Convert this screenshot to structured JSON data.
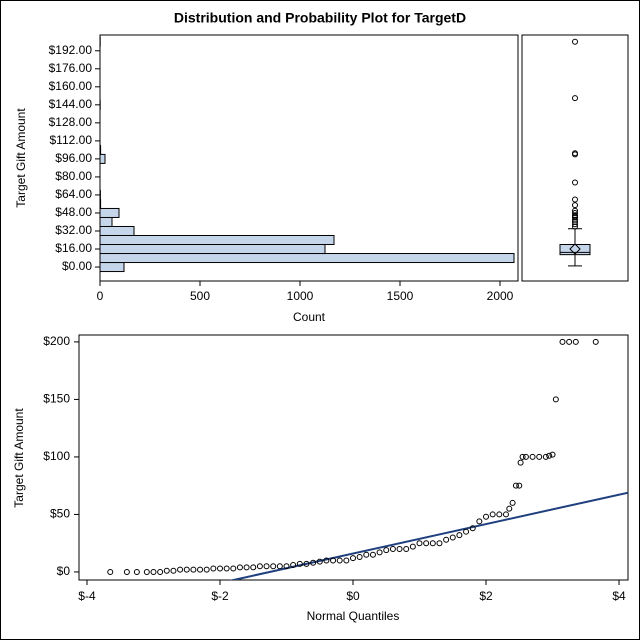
{
  "title": "Distribution and Probability Plot for TargetD",
  "chart_data": [
    {
      "type": "histogram",
      "orientation": "horizontal",
      "xlabel": "Count",
      "ylabel": "Target Gift Amount",
      "bins": [
        -4,
        4,
        12,
        20,
        28,
        36,
        44,
        52,
        60,
        68,
        76,
        84,
        92,
        100,
        108,
        116,
        124,
        132,
        140,
        148,
        156,
        164,
        172,
        180,
        188,
        196,
        204
      ],
      "values": [
        120,
        2070,
        1125,
        1170,
        170,
        60,
        95,
        3,
        2,
        0,
        0,
        0,
        25,
        3,
        0,
        0,
        0,
        0,
        1,
        0,
        0,
        0,
        0,
        0,
        0,
        1
      ],
      "color": "#c5d6eb",
      "xlim": [
        0,
        2090
      ],
      "xticks": [
        0,
        500,
        1000,
        1500,
        2000
      ],
      "ylim": [
        -12.4,
        206
      ],
      "yticks": [
        {
          "value": 0,
          "label": "$0.00"
        },
        {
          "value": 16,
          "label": "$16.00"
        },
        {
          "value": 32,
          "label": "$32.00"
        },
        {
          "value": 48,
          "label": "$48.00"
        },
        {
          "value": 64,
          "label": "$64.00"
        },
        {
          "value": 80,
          "label": "$80.00"
        },
        {
          "value": 96,
          "label": "$96.00"
        },
        {
          "value": 112,
          "label": "$112.00"
        },
        {
          "value": 128,
          "label": "$128.00"
        },
        {
          "value": 144,
          "label": "$144.00"
        },
        {
          "value": 160,
          "label": "$160.00"
        },
        {
          "value": 176,
          "label": "$176.00"
        },
        {
          "value": 192,
          "label": "$192.00"
        }
      ]
    },
    {
      "type": "box",
      "ylim": [
        -12.4,
        206
      ],
      "color": "#c5d6eb",
      "whisker_low": 1,
      "q1": 11,
      "median": 13,
      "q3": 20,
      "whisker_high": 34,
      "mean": 16,
      "outliers": [
        36,
        38,
        40,
        42,
        44,
        45,
        46,
        48,
        50,
        55,
        60,
        75,
        100,
        101,
        150,
        200
      ]
    },
    {
      "type": "scatter",
      "xlabel": "Normal Quantiles",
      "ylabel": "Target Gift Amount",
      "x": [
        -3.65,
        -3.4,
        -3.25,
        -3.1,
        -3.0,
        -2.9,
        -2.8,
        -2.7,
        -2.6,
        -2.5,
        -2.4,
        -2.3,
        -2.2,
        -2.1,
        -2.0,
        -1.9,
        -1.8,
        -1.7,
        -1.6,
        -1.5,
        -1.4,
        -1.3,
        -1.2,
        -1.1,
        -1.0,
        -0.9,
        -0.8,
        -0.7,
        -0.6,
        -0.5,
        -0.4,
        -0.3,
        -0.2,
        -0.1,
        0,
        0.1,
        0.2,
        0.3,
        0.4,
        0.5,
        0.6,
        0.7,
        0.8,
        0.9,
        1.0,
        1.1,
        1.2,
        1.3,
        1.4,
        1.5,
        1.6,
        1.7,
        1.8,
        1.9,
        2.0,
        2.1,
        2.2,
        2.3,
        2.35,
        2.4,
        2.45,
        2.5,
        2.52,
        2.55,
        2.6,
        2.7,
        2.8,
        2.9,
        2.95,
        3.0,
        3.05,
        3.15,
        3.25,
        3.35,
        3.65
      ],
      "values": [
        0,
        0,
        0,
        0,
        0,
        0,
        1,
        1,
        2,
        2,
        2,
        2,
        2,
        3,
        3,
        3,
        3,
        4,
        4,
        4,
        5,
        5,
        5,
        5,
        5,
        6,
        7,
        7,
        8,
        9,
        10,
        10,
        10,
        10,
        12,
        13,
        15,
        15,
        17,
        19,
        20,
        20,
        20,
        22,
        25,
        25,
        25,
        25,
        28,
        30,
        32,
        35,
        38,
        44,
        48,
        50,
        50,
        50,
        55,
        60,
        75,
        75,
        95,
        100,
        100,
        100,
        100,
        100,
        101,
        102,
        150,
        200,
        200,
        200,
        200
      ],
      "reference_line": {
        "intercept": 16,
        "slope": 12.8,
        "color": "#1f3f7f"
      },
      "xlim": [
        -4.12,
        4.135
      ],
      "xticks": [
        {
          "value": -4,
          "label": "$-4"
        },
        {
          "value": -2,
          "label": "$-2"
        },
        {
          "value": 0,
          "label": "$0"
        },
        {
          "value": 2,
          "label": "$2"
        },
        {
          "value": 4,
          "label": "$4"
        }
      ],
      "ylim": [
        -7,
        206
      ],
      "yticks": [
        {
          "value": 0,
          "label": "$0"
        },
        {
          "value": 50,
          "label": "$50"
        },
        {
          "value": 100,
          "label": "$100"
        },
        {
          "value": 150,
          "label": "$150"
        },
        {
          "value": 200,
          "label": "$200"
        }
      ]
    }
  ]
}
